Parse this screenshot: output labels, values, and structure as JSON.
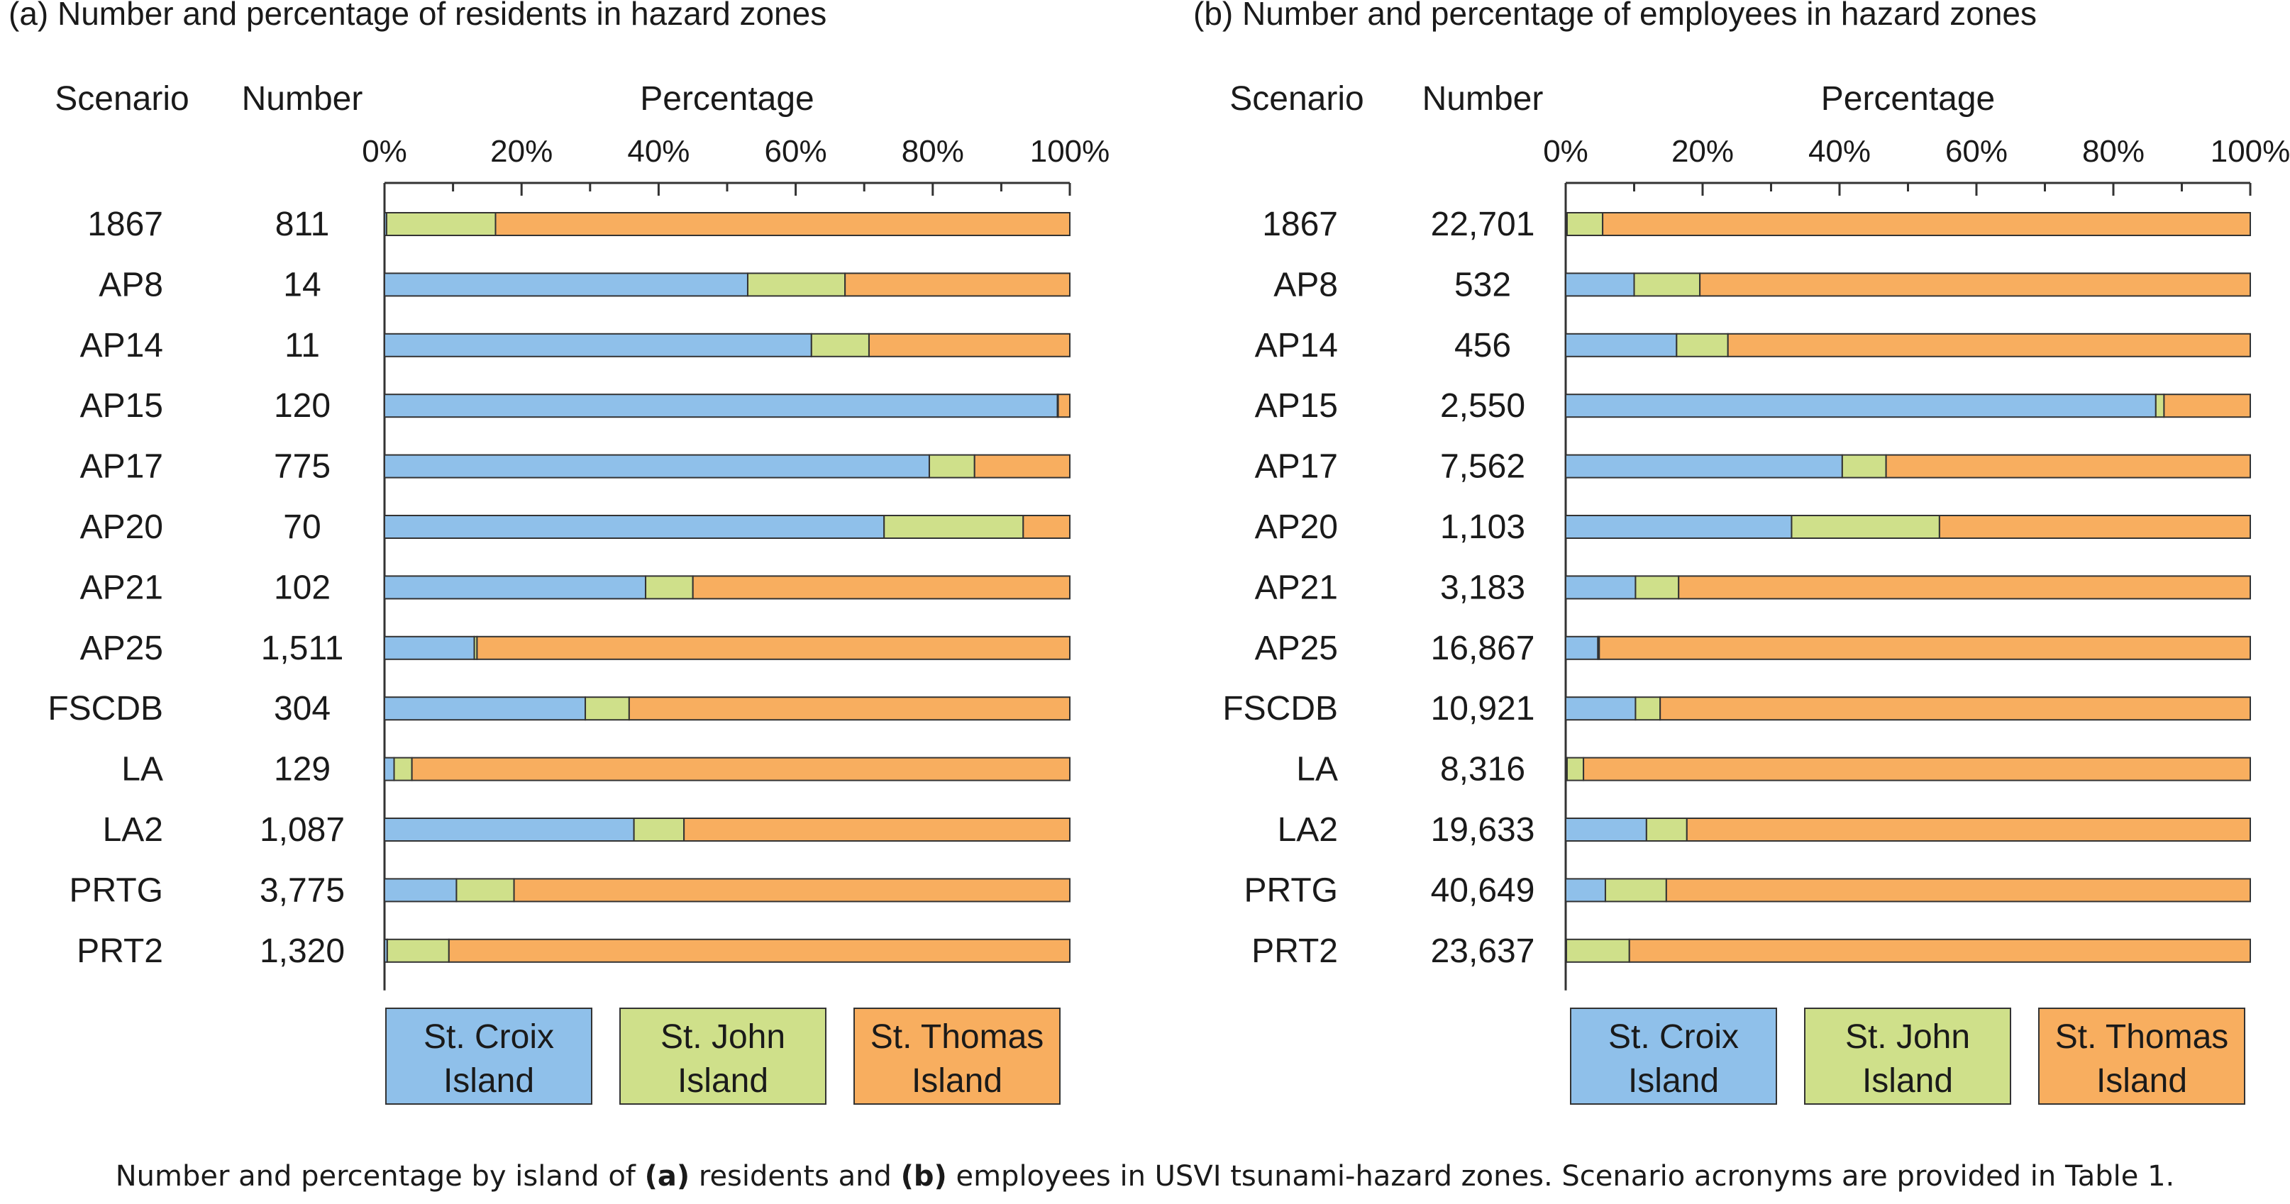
{
  "colors": {
    "st_croix": "#8fc0ea",
    "st_john": "#cfe08a",
    "st_thomas": "#f8ae5f"
  },
  "chart_data": [
    {
      "type": "bar",
      "orientation": "horizontal",
      "stacked": true,
      "title": "(a) Number and percentage of residents in hazard zones",
      "col_headers": {
        "scenario": "Scenario",
        "number": "Number",
        "percentage": "Percentage"
      },
      "xlim": [
        0,
        100
      ],
      "x_ticks": [
        "0%",
        "20%",
        "40%",
        "60%",
        "80%",
        "100%"
      ],
      "scenarios": [
        "1867",
        "AP8",
        "AP14",
        "AP15",
        "AP17",
        "AP20",
        "AP21",
        "AP25",
        "FSCDB",
        "LA",
        "LA2",
        "PRTG",
        "PRT2"
      ],
      "numbers": [
        "811",
        "14",
        "11",
        "120",
        "775",
        "70",
        "102",
        "1,511",
        "304",
        "129",
        "1,087",
        "3,775",
        "1,320"
      ],
      "series": [
        {
          "name": "St. Croix Island",
          "line1": "St. Croix",
          "line2": "Island",
          "color_key": "st_croix",
          "values": [
            0.3,
            53.0,
            62.3,
            98.2,
            79.5,
            72.9,
            38.1,
            13.1,
            29.3,
            1.4,
            36.4,
            10.5,
            0.4
          ]
        },
        {
          "name": "St. John Island",
          "line1": "St. John",
          "line2": "Island",
          "color_key": "st_john",
          "values": [
            15.9,
            14.2,
            8.4,
            0.1,
            6.6,
            20.3,
            6.9,
            0.4,
            6.4,
            2.6,
            7.3,
            8.4,
            9.0
          ]
        },
        {
          "name": "St. Thomas Island",
          "line1": "St. Thomas",
          "line2": "Island",
          "color_key": "st_thomas",
          "values": [
            83.8,
            32.8,
            29.3,
            1.7,
            13.9,
            6.8,
            55.0,
            86.5,
            64.3,
            96.0,
            56.3,
            81.1,
            90.6
          ]
        }
      ]
    },
    {
      "type": "bar",
      "orientation": "horizontal",
      "stacked": true,
      "title": "(b) Number and percentage of employees in hazard zones",
      "col_headers": {
        "scenario": "Scenario",
        "number": "Number",
        "percentage": "Percentage"
      },
      "xlim": [
        0,
        100
      ],
      "x_ticks": [
        "0%",
        "20%",
        "40%",
        "60%",
        "80%",
        "100%"
      ],
      "scenarios": [
        "1867",
        "AP8",
        "AP14",
        "AP15",
        "AP17",
        "AP20",
        "AP21",
        "AP25",
        "FSCDB",
        "LA",
        "LA2",
        "PRTG",
        "PRT2"
      ],
      "numbers": [
        "22,701",
        "532",
        "456",
        "2,550",
        "7,562",
        "1,103",
        "3,183",
        "16,867",
        "10,921",
        "8,316",
        "19,633",
        "40,649",
        "23,637"
      ],
      "series": [
        {
          "name": "St. Croix Island",
          "line1": "St. Croix",
          "line2": "Island",
          "color_key": "st_croix",
          "values": [
            0.2,
            10.0,
            16.2,
            86.2,
            40.4,
            33.0,
            10.2,
            4.7,
            10.2,
            0.2,
            11.8,
            5.8,
            0.1
          ]
        },
        {
          "name": "St. John Island",
          "line1": "St. John",
          "line2": "Island",
          "color_key": "st_john",
          "values": [
            5.2,
            9.6,
            7.5,
            1.2,
            6.4,
            21.6,
            6.3,
            0.2,
            3.6,
            2.4,
            5.9,
            8.9,
            9.2
          ]
        },
        {
          "name": "St. Thomas Island",
          "line1": "St. Thomas",
          "line2": "Island",
          "color_key": "st_thomas",
          "values": [
            94.6,
            80.4,
            76.3,
            12.6,
            53.2,
            45.4,
            83.5,
            95.1,
            86.2,
            97.4,
            82.3,
            85.3,
            90.7
          ]
        }
      ]
    }
  ],
  "caption": {
    "part1": "Number and percentage by island of ",
    "bold_a": "(a)",
    "part2": " residents and ",
    "bold_b": "(b)",
    "part3": " employees in USVI tsunami-hazard zones. Scenario acronyms are provided in Table 1."
  }
}
